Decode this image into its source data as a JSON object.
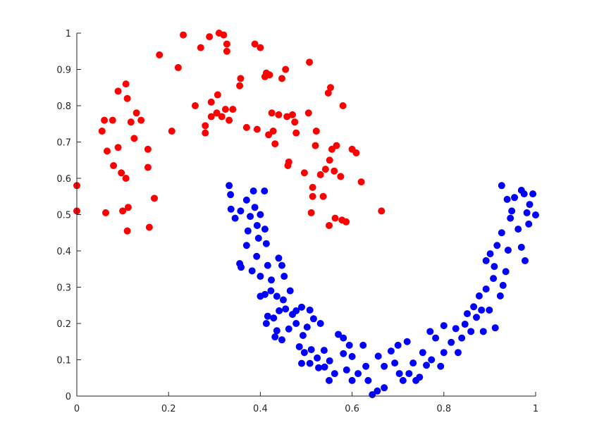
{
  "chart_data": {
    "type": "scatter",
    "xlim": [
      0,
      1
    ],
    "ylim": [
      0,
      1
    ],
    "xticks": [
      0,
      0.2,
      0.4,
      0.6,
      0.8,
      1
    ],
    "yticks": [
      0,
      0.1,
      0.2,
      0.3,
      0.4,
      0.5,
      0.6,
      0.7,
      0.8,
      0.9,
      1
    ],
    "grid": false,
    "series": [
      {
        "color": "#ff0000",
        "x": [
          0.0,
          0.0,
          0.055,
          0.06,
          0.063,
          0.066,
          0.078,
          0.08,
          0.09,
          0.09,
          0.097,
          0.107,
          0.107,
          0.11,
          0.1,
          0.112,
          0.11,
          0.118,
          0.125,
          0.13,
          0.14,
          0.155,
          0.155,
          0.158,
          0.169,
          0.18,
          0.207,
          0.221,
          0.232,
          0.258,
          0.27,
          0.28,
          0.28,
          0.289,
          0.293,
          0.305,
          0.293,
          0.307,
          0.31,
          0.32,
          0.327,
          0.327,
          0.316,
          0.324,
          0.332,
          0.34,
          0.355,
          0.357,
          0.37,
          0.388,
          0.4,
          0.393,
          0.41,
          0.413,
          0.418,
          0.42,
          0.425,
          0.432,
          0.428,
          0.44,
          0.447,
          0.455,
          0.458,
          0.46,
          0.462,
          0.475,
          0.478,
          0.47,
          0.496,
          0.507,
          0.505,
          0.514,
          0.514,
          0.511,
          0.52,
          0.531,
          0.537,
          0.542,
          0.55,
          0.548,
          0.553,
          0.551,
          0.556,
          0.561,
          0.563,
          0.566,
          0.575,
          0.578,
          0.587,
          0.58,
          0.6,
          0.609,
          0.62,
          0.664,
          0.522
        ],
        "values": [
          0.58,
          0.51,
          0.73,
          0.76,
          0.505,
          0.675,
          0.76,
          0.635,
          0.685,
          0.84,
          0.615,
          0.6,
          0.86,
          0.82,
          0.51,
          0.52,
          0.455,
          0.755,
          0.71,
          0.78,
          0.76,
          0.68,
          0.63,
          0.465,
          0.545,
          0.94,
          0.73,
          0.905,
          0.995,
          0.8,
          0.96,
          0.745,
          0.725,
          0.99,
          0.81,
          0.78,
          0.77,
          0.83,
          1.0,
          0.995,
          0.95,
          0.97,
          0.77,
          0.79,
          0.76,
          0.79,
          0.855,
          0.875,
          0.74,
          0.97,
          0.96,
          0.735,
          0.88,
          0.89,
          0.72,
          0.885,
          0.78,
          0.695,
          0.73,
          0.775,
          0.875,
          0.9,
          0.77,
          0.635,
          0.645,
          0.755,
          0.725,
          0.775,
          0.615,
          0.92,
          0.78,
          0.575,
          0.55,
          0.505,
          0.69,
          0.61,
          0.55,
          0.625,
          0.47,
          0.835,
          0.85,
          0.65,
          0.68,
          0.62,
          0.49,
          0.69,
          0.605,
          0.485,
          0.48,
          0.8,
          0.68,
          0.67,
          0.59,
          0.51,
          0.73
        ]
      },
      {
        "color": "#0000ff",
        "x": [
          0.332,
          0.335,
          0.336,
          0.345,
          0.357,
          0.37,
          0.373,
          0.378,
          0.385,
          0.388,
          0.393,
          0.396,
          0.4,
          0.409,
          0.41,
          0.413,
          0.37,
          0.355,
          0.358,
          0.382,
          0.392,
          0.4,
          0.416,
          0.424,
          0.44,
          0.447,
          0.452,
          0.41,
          0.4,
          0.423,
          0.436,
          0.45,
          0.465,
          0.416,
          0.413,
          0.429,
          0.441,
          0.455,
          0.47,
          0.478,
          0.49,
          0.508,
          0.432,
          0.447,
          0.436,
          0.462,
          0.478,
          0.493,
          0.502,
          0.516,
          0.531,
          0.485,
          0.496,
          0.511,
          0.49,
          0.508,
          0.524,
          0.539,
          0.527,
          0.54,
          0.551,
          0.562,
          0.55,
          0.57,
          0.581,
          0.594,
          0.581,
          0.6,
          0.588,
          0.6,
          0.613,
          0.624,
          0.63,
          0.635,
          0.644,
          0.655,
          0.67,
          0.657,
          0.67,
          0.685,
          0.693,
          0.7,
          0.703,
          0.711,
          0.72,
          0.724,
          0.733,
          0.739,
          0.747,
          0.754,
          0.762,
          0.773,
          0.77,
          0.782,
          0.793,
          0.8,
          0.8,
          0.816,
          0.826,
          0.831,
          0.839,
          0.846,
          0.851,
          0.859,
          0.865,
          0.871,
          0.877,
          0.882,
          0.886,
          0.892,
          0.899,
          0.908,
          0.912,
          0.892,
          0.901,
          0.91,
          0.916,
          0.926,
          0.923,
          0.929,
          0.935,
          0.94,
          0.945,
          0.926,
          0.938,
          0.948,
          0.954,
          0.962,
          0.969,
          0.977,
          0.969,
          0.981,
          0.987,
          0.994,
          1.0,
          0.985,
          0.975
        ],
        "values": [
          0.58,
          0.555,
          0.515,
          0.49,
          0.51,
          0.54,
          0.455,
          0.495,
          0.565,
          0.52,
          0.47,
          0.435,
          0.5,
          0.565,
          0.46,
          0.42,
          0.415,
          0.365,
          0.355,
          0.345,
          0.385,
          0.33,
          0.36,
          0.32,
          0.38,
          0.36,
          0.33,
          0.28,
          0.275,
          0.29,
          0.275,
          0.265,
          0.29,
          0.22,
          0.2,
          0.215,
          0.235,
          0.24,
          0.225,
          0.235,
          0.245,
          0.237,
          0.163,
          0.155,
          0.18,
          0.185,
          0.2,
          0.167,
          0.19,
          0.213,
          0.2,
          0.136,
          0.12,
          0.128,
          0.09,
          0.09,
          0.105,
          0.126,
          0.078,
          0.08,
          0.097,
          0.062,
          0.043,
          0.17,
          0.16,
          0.14,
          0.117,
          0.109,
          0.072,
          0.043,
          0.062,
          0.14,
          0.082,
          0.043,
          0.004,
          0.014,
          0.023,
          0.11,
          0.082,
          0.124,
          0.091,
          0.14,
          0.062,
          0.043,
          0.15,
          0.062,
          0.091,
          0.043,
          0.052,
          0.12,
          0.085,
          0.1,
          0.178,
          0.16,
          0.082,
          0.12,
          0.194,
          0.148,
          0.186,
          0.12,
          0.16,
          0.198,
          0.227,
          0.178,
          0.246,
          0.217,
          0.276,
          0.237,
          0.178,
          0.295,
          0.237,
          0.324,
          0.188,
          0.373,
          0.392,
          0.357,
          0.415,
          0.45,
          0.276,
          0.305,
          0.343,
          0.402,
          0.49,
          0.58,
          0.542,
          0.51,
          0.547,
          0.46,
          0.41,
          0.373,
          0.567,
          0.505,
          0.528,
          0.557,
          0.499,
          0.474,
          0.557
        ]
      }
    ]
  }
}
